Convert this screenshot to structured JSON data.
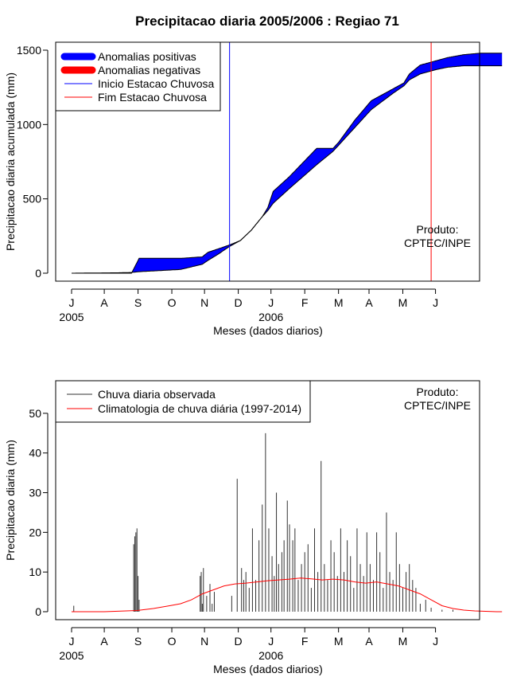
{
  "chart_data": [
    {
      "type": "area",
      "title": "Precipitacao diaria 2005/2006 : Regiao 71",
      "xlabel": "Meses (dados diarios)",
      "ylabel": "Precipitacao diaria acumulada (mm)",
      "ylim": [
        0,
        1500
      ],
      "yticks": [
        "0",
        "500",
        "1000",
        "1500"
      ],
      "months": [
        "J",
        "A",
        "S",
        "O",
        "N",
        "D",
        "J",
        "F",
        "M",
        "A",
        "M",
        "J"
      ],
      "years": [
        "2005",
        "2006"
      ],
      "x_unit": "days since 2005-06-01",
      "observed_accumulated": {
        "x": [
          0,
          44,
          55,
          62,
          100,
          120,
          125,
          135,
          145,
          155,
          165,
          175,
          180,
          185,
          200,
          225,
          240,
          245,
          260,
          275,
          295,
          305,
          310,
          320,
          335,
          345,
          360,
          375,
          385,
          395
        ],
        "y": [
          0,
          0,
          0,
          100,
          100,
          110,
          140,
          165,
          190,
          220,
          290,
          380,
          440,
          550,
          650,
          840,
          840,
          880,
          1030,
          1160,
          1240,
          1280,
          1340,
          1400,
          1430,
          1450,
          1470,
          1480,
          1480,
          1480
        ]
      },
      "climatology_accumulated": {
        "x": [
          0,
          44,
          55,
          62,
          100,
          120,
          125,
          135,
          145,
          155,
          165,
          175,
          180,
          185,
          200,
          225,
          240,
          245,
          260,
          275,
          295,
          305,
          310,
          320,
          335,
          345,
          360,
          375,
          385,
          395
        ],
        "y": [
          0,
          3,
          5,
          10,
          25,
          60,
          85,
          130,
          180,
          220,
          290,
          380,
          420,
          470,
          570,
          730,
          820,
          860,
          980,
          1100,
          1210,
          1260,
          1300,
          1340,
          1370,
          1385,
          1395,
          1395,
          1395,
          1395
        ]
      },
      "inicio_estacao_chuvosa_day": 145,
      "fim_estacao_chuvosa_day": 330,
      "legend": [
        "Anomalias positivas",
        "Anomalias negativas",
        "Inicio Estacao Chuvosa",
        "Fim Estacao Chuvosa"
      ],
      "legend_position": "top-left",
      "colors": {
        "positive": "#0000ff",
        "negative": "#ff0000",
        "inicio": "#0000ff",
        "fim": "#ff0000"
      },
      "annotation": [
        "Produto:",
        "CPTEC/INPE"
      ]
    },
    {
      "type": "bar",
      "title": "",
      "xlabel": "Meses (dados diarios)",
      "ylabel": "Precipitacao diaria (mm)",
      "ylim": [
        0,
        55
      ],
      "yticks": [
        "0",
        "10",
        "20",
        "30",
        "40",
        "50"
      ],
      "months": [
        "J",
        "A",
        "S",
        "O",
        "N",
        "D",
        "J",
        "F",
        "M",
        "A",
        "M",
        "J"
      ],
      "years": [
        "2005",
        "2006"
      ],
      "x_unit": "days since 2005-06-01",
      "observed_daily": {
        "x": [
          2,
          57,
          58,
          59,
          60,
          61,
          62,
          118,
          119,
          120,
          121,
          124,
          127,
          129,
          131,
          147,
          152,
          156,
          158,
          160,
          163,
          166,
          169,
          172,
          175,
          178,
          181,
          184,
          186,
          188,
          190,
          193,
          195,
          198,
          200,
          203,
          205,
          208,
          211,
          214,
          217,
          220,
          223,
          226,
          229,
          232,
          235,
          238,
          241,
          244,
          247,
          250,
          253,
          256,
          259,
          262,
          265,
          268,
          271,
          274,
          277,
          280,
          283,
          286,
          289,
          292,
          295,
          298,
          301,
          304,
          307,
          310,
          313,
          316,
          320,
          325,
          330,
          340,
          350
        ],
        "y": [
          1.5,
          17,
          19,
          20,
          21,
          9,
          3,
          9,
          10,
          2,
          11,
          4,
          7,
          2,
          5,
          4,
          33.5,
          11,
          8,
          10,
          6,
          21,
          8,
          18,
          27,
          45,
          21,
          14,
          9,
          30,
          12,
          15,
          18,
          28,
          22,
          18,
          21,
          8,
          12,
          15,
          17,
          6,
          21,
          10,
          38,
          12,
          8,
          18,
          15,
          9,
          21,
          10,
          18,
          14,
          6,
          21,
          12,
          9,
          20,
          12,
          8,
          20,
          15,
          6,
          25,
          10,
          8,
          20,
          12,
          6,
          10,
          12,
          8,
          6,
          2,
          3,
          1,
          0.5,
          0.5
        ]
      },
      "climatology_daily": {
        "x": [
          0,
          30,
          60,
          75,
          90,
          100,
          110,
          120,
          130,
          140,
          150,
          160,
          170,
          180,
          190,
          200,
          210,
          220,
          230,
          240,
          250,
          260,
          270,
          280,
          290,
          300,
          310,
          320,
          330,
          340,
          350,
          360,
          370,
          380,
          390,
          395
        ],
        "y": [
          0,
          0,
          0.3,
          0.8,
          1.5,
          2,
          3,
          4.5,
          5.5,
          6.5,
          7,
          7.2,
          7.5,
          7.8,
          8,
          8.2,
          8.5,
          8.3,
          8,
          8.2,
          8,
          7.5,
          7.2,
          7.5,
          7,
          6.5,
          5.5,
          4.5,
          3,
          1.5,
          0.8,
          0.4,
          0.2,
          0.1,
          0,
          0
        ]
      },
      "legend": [
        "Chuva diaria observada",
        "Climatologia de chuva diária (1997-2014)"
      ],
      "legend_position": "top-left",
      "colors": {
        "observed": "#333333",
        "climatology": "#ff0000"
      },
      "annotation": [
        "Produto:",
        "CPTEC/INPE"
      ]
    }
  ]
}
